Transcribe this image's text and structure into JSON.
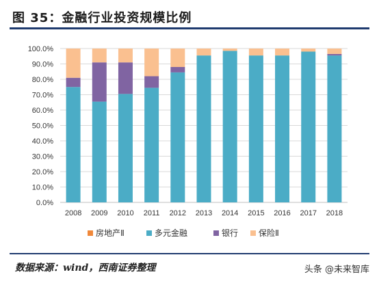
{
  "title": "图 35：金融行业投资规模比例",
  "source": "数据来源：wind，西南证券整理",
  "watermark": "头条 @未来智库",
  "chart_data": {
    "type": "bar",
    "stacked": true,
    "categories": [
      "2008",
      "2009",
      "2010",
      "2011",
      "2012",
      "2013",
      "2014",
      "2015",
      "2016",
      "2017",
      "2018"
    ],
    "y_ticks": [
      "0.0%",
      "10.0%",
      "20.0%",
      "30.0%",
      "40.0%",
      "50.0%",
      "60.0%",
      "70.0%",
      "80.0%",
      "90.0%",
      "100.0%"
    ],
    "ylim": [
      0,
      100
    ],
    "legend_position": "bottom",
    "series": [
      {
        "name": "房地产Ⅱ",
        "color": "#f0883a",
        "values": [
          0,
          0,
          0,
          0,
          0,
          0,
          0,
          0,
          0,
          0,
          0
        ]
      },
      {
        "name": "多元金融",
        "color": "#4bacc6",
        "values": [
          75,
          65.5,
          70.5,
          74.5,
          84.5,
          95.5,
          98.5,
          95.5,
          95.5,
          98,
          95.5
        ]
      },
      {
        "name": "银行",
        "color": "#8064a2",
        "values": [
          6,
          25.5,
          20.5,
          7.5,
          3.5,
          0,
          0,
          0,
          0,
          0,
          1
        ]
      },
      {
        "name": "保险Ⅱ",
        "color": "#fac090",
        "values": [
          19,
          9,
          9,
          18,
          12,
          4.5,
          1.5,
          4.5,
          4.5,
          2,
          3.5
        ]
      }
    ]
  }
}
